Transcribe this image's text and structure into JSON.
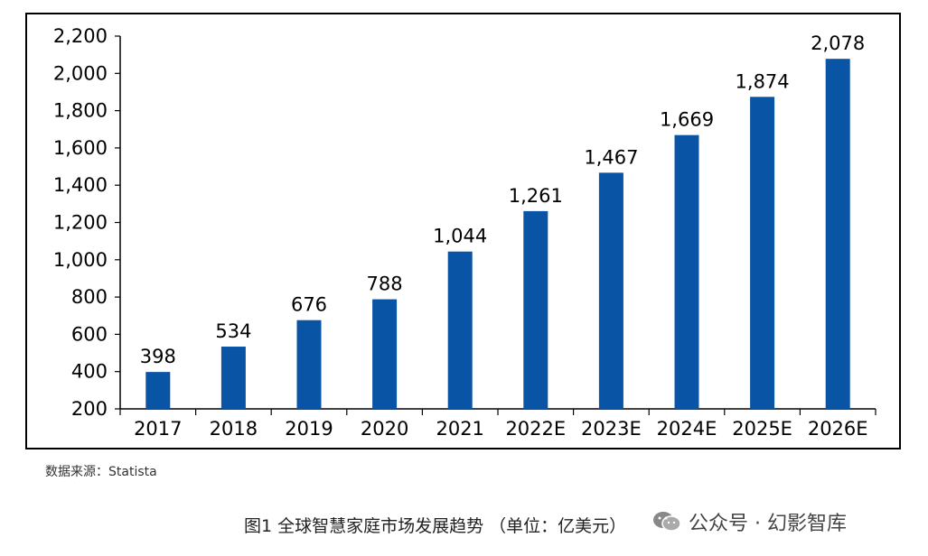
{
  "chart_data": {
    "type": "bar",
    "categories": [
      "2017",
      "2018",
      "2019",
      "2020",
      "2021",
      "2022E",
      "2023E",
      "2024E",
      "2025E",
      "2026E"
    ],
    "values": [
      398,
      534,
      676,
      788,
      1044,
      1261,
      1467,
      1669,
      1874,
      2078
    ],
    "data_labels": [
      "398",
      "534",
      "676",
      "788",
      "1,044",
      "1,261",
      "1,467",
      "1,669",
      "1,874",
      "2,078"
    ],
    "ylim": [
      200,
      2200
    ],
    "yticks": [
      200,
      400,
      600,
      800,
      1000,
      1200,
      1400,
      1600,
      1800,
      2000,
      2200
    ],
    "ytick_labels": [
      "200",
      "400",
      "600",
      "800",
      "1,000",
      "1,200",
      "1,400",
      "1,600",
      "1,800",
      "2,000",
      "2,200"
    ],
    "bar_color": "#0A54A6",
    "grid": false,
    "legend": "none"
  },
  "source_text": "数据来源：Statista",
  "caption": "图1  全球智慧家庭市场发展趋势 （单位：亿美元）",
  "watermark": {
    "icon": "wechat-icon",
    "text": "公众号 · 幻影智库"
  }
}
